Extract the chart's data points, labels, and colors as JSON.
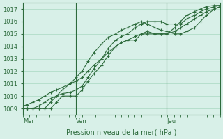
{
  "bg_color": "#d8f0e8",
  "grid_color": "#a8d8c0",
  "line_color": "#2d6b3c",
  "marker_color": "#2d6b3c",
  "ylabel_values": [
    1009,
    1010,
    1011,
    1012,
    1013,
    1014,
    1015,
    1016,
    1017
  ],
  "xlabel": "Pression niveau de la mer( hPa )",
  "day_labels": [
    "Mer",
    "Ven",
    "Jeu"
  ],
  "day_positions": [
    0.0,
    0.27,
    0.73
  ],
  "ymin": 1008.5,
  "ymax": 1017.5,
  "xmin": 0.0,
  "xmax": 1.0,
  "series": [
    [
      0.0,
      0.02,
      0.05,
      0.08,
      0.11,
      0.14,
      0.17,
      0.2,
      0.24,
      0.27,
      0.3,
      0.33,
      0.36,
      0.4,
      0.43,
      0.47,
      0.5,
      0.53,
      0.57,
      0.6,
      0.63,
      0.67,
      0.7,
      0.73,
      0.77,
      0.8,
      0.83,
      0.87,
      0.9,
      0.93,
      0.97,
      1.0
    ],
    [
      1009.0,
      1009.0,
      1009.0,
      1009.0,
      1009.0,
      1009.0,
      1009.5,
      1010.0,
      1010.0,
      1010.0,
      1010.5,
      1011.2,
      1011.8,
      1012.5,
      1013.2,
      1014.0,
      1014.3,
      1014.5,
      1014.5,
      1015.0,
      1015.0,
      1015.0,
      1015.0,
      1015.0,
      1015.5,
      1016.0,
      1016.5,
      1016.8,
      1017.0,
      1017.2,
      1017.3,
      1017.3
    ],
    [
      1009.0,
      1009.0,
      1009.0,
      1009.2,
      1009.5,
      1009.8,
      1010.0,
      1010.2,
      1010.3,
      1010.5,
      1010.8,
      1011.5,
      1012.2,
      1013.0,
      1013.8,
      1014.5,
      1014.8,
      1015.0,
      1015.5,
      1015.8,
      1016.0,
      1016.0,
      1016.0,
      1015.8,
      1015.8,
      1015.8,
      1016.2,
      1016.5,
      1016.8,
      1017.0,
      1017.2,
      1017.3
    ],
    [
      1009.2,
      1009.3,
      1009.5,
      1009.7,
      1010.0,
      1010.3,
      1010.5,
      1010.7,
      1011.0,
      1011.2,
      1011.5,
      1012.0,
      1012.5,
      1013.0,
      1013.5,
      1014.0,
      1014.3,
      1014.5,
      1014.8,
      1015.0,
      1015.2,
      1015.0,
      1015.0,
      1015.0,
      1015.2,
      1015.5,
      1015.8,
      1016.2,
      1016.5,
      1016.8,
      1017.0,
      1017.2
    ],
    [
      1009.0,
      1009.0,
      1009.0,
      1009.0,
      1009.0,
      1009.5,
      1010.0,
      1010.5,
      1011.0,
      1011.5,
      1012.0,
      1012.8,
      1013.5,
      1014.2,
      1014.7,
      1015.0,
      1015.3,
      1015.5,
      1015.8,
      1016.0,
      1015.8,
      1015.5,
      1015.3,
      1015.2,
      1015.0,
      1015.0,
      1015.2,
      1015.5,
      1016.0,
      1016.5,
      1017.0,
      1017.2
    ]
  ]
}
